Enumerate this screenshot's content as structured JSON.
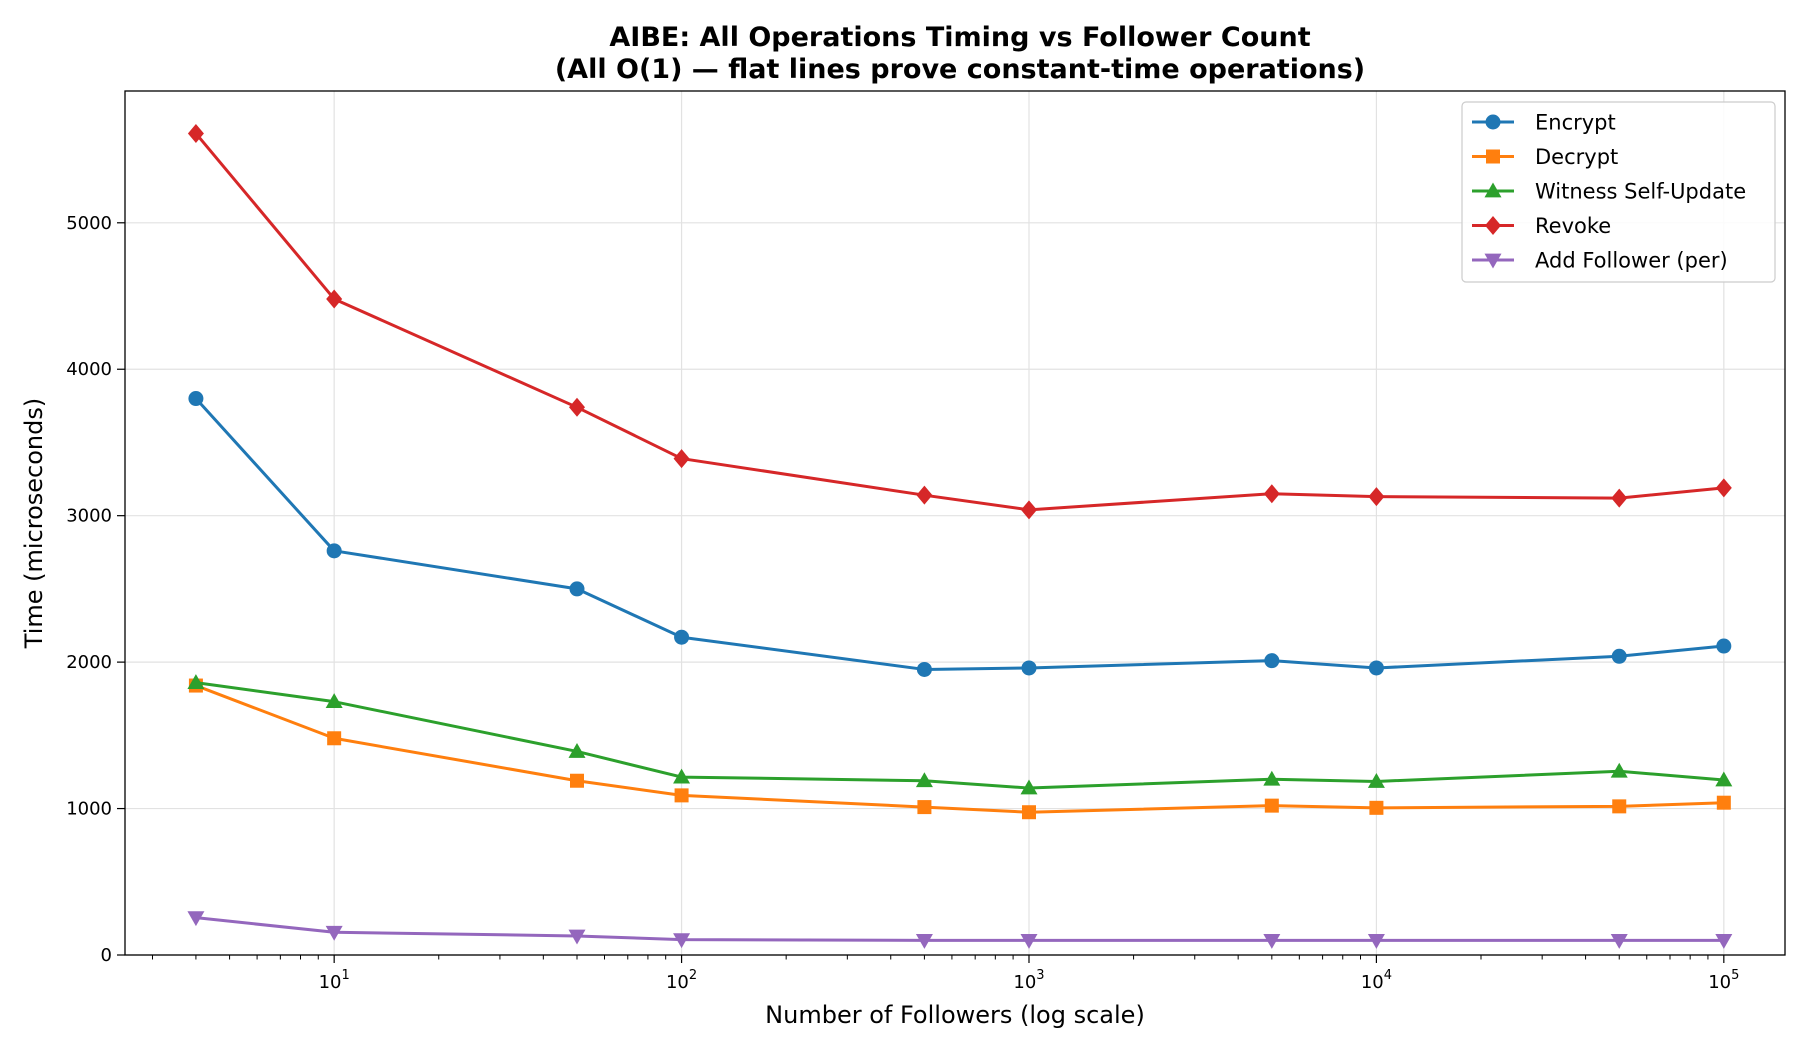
{
  "chart_data": {
    "type": "line",
    "title": "AIBE: All Operations Timing vs Follower Count",
    "subtitle": "(All O(1) — flat lines prove constant-time operations)",
    "xlabel": "Number of Followers (log scale)",
    "ylabel": "Time (microseconds)",
    "xscale": "log",
    "xlim": [
      2.5,
      150000
    ],
    "ylim": [
      0,
      5900
    ],
    "grid": true,
    "legend_position": "top-right",
    "x": [
      4,
      10,
      50,
      100,
      500,
      1000,
      5000,
      10000,
      50000,
      100000
    ],
    "x_ticks": [
      {
        "value": 10,
        "base": "10",
        "exp": "1"
      },
      {
        "value": 100,
        "base": "10",
        "exp": "2"
      },
      {
        "value": 1000,
        "base": "10",
        "exp": "3"
      },
      {
        "value": 10000,
        "base": "10",
        "exp": "4"
      },
      {
        "value": 100000,
        "base": "10",
        "exp": "5"
      }
    ],
    "y_ticks": [
      {
        "value": 0,
        "label": "0"
      },
      {
        "value": 1000,
        "label": "1000"
      },
      {
        "value": 2000,
        "label": "2000"
      },
      {
        "value": 3000,
        "label": "3000"
      },
      {
        "value": 4000,
        "label": "4000"
      },
      {
        "value": 5000,
        "label": "5000"
      }
    ],
    "series": [
      {
        "name": "Encrypt",
        "color": "#1f77b4",
        "marker": "circle",
        "values": [
          3800,
          2760,
          2500,
          2170,
          1950,
          1960,
          2010,
          1960,
          2040,
          2110
        ]
      },
      {
        "name": "Decrypt",
        "color": "#ff7f0e",
        "marker": "square",
        "values": [
          1840,
          1480,
          1190,
          1090,
          1010,
          975,
          1020,
          1005,
          1015,
          1040
        ]
      },
      {
        "name": "Witness Self-Update",
        "color": "#2ca02c",
        "marker": "triangle-up",
        "values": [
          1860,
          1730,
          1390,
          1215,
          1190,
          1140,
          1200,
          1185,
          1255,
          1195
        ]
      },
      {
        "name": "Revoke",
        "color": "#d62728",
        "marker": "diamond",
        "values": [
          5610,
          4480,
          3740,
          3390,
          3140,
          3040,
          3150,
          3130,
          3120,
          3190
        ]
      },
      {
        "name": "Add Follower (per)",
        "color": "#9467bd",
        "marker": "triangle-down",
        "values": [
          255,
          155,
          130,
          105,
          100,
          100,
          100,
          100,
          100,
          100
        ]
      }
    ]
  }
}
